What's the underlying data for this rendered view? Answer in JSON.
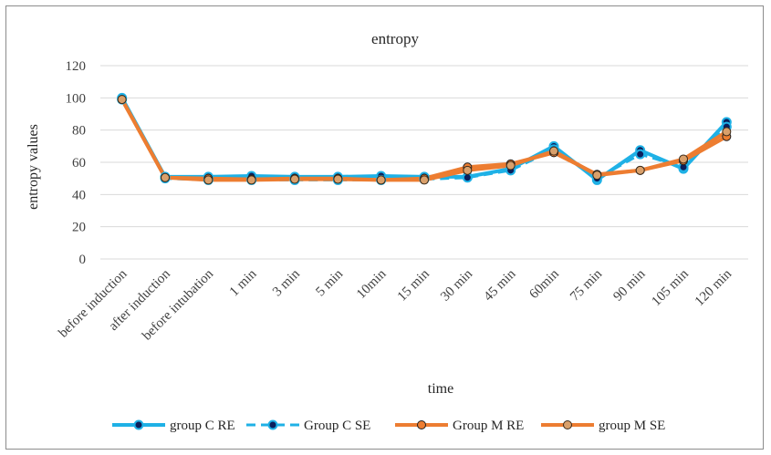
{
  "chart_data": {
    "type": "line",
    "title": "entropy",
    "xlabel": "time",
    "ylabel": "entropy values",
    "ylim": [
      0,
      120
    ],
    "yticks": [
      "0",
      "20",
      "40",
      "60",
      "80",
      "100",
      "120"
    ],
    "grid": true,
    "legend_position": "bottom",
    "categories": [
      "before induction",
      "after induction",
      "before intubation",
      "1 min",
      "3 min",
      "5 min",
      "10min",
      "15 min",
      "30 min",
      "45 min",
      "60min",
      "75 min",
      "90 min",
      "105 min",
      "120 min"
    ],
    "series": [
      {
        "name": "group C RE",
        "color": "#1fb1e6",
        "style": "solid",
        "values": [
          100,
          51,
          51,
          51.5,
          51,
          51,
          51.5,
          51,
          51,
          56,
          70,
          49,
          67.5,
          56,
          85
        ]
      },
      {
        "name": "Group C SE",
        "color": "#1fb1e6",
        "style": "dashed",
        "values": [
          99,
          50,
          49,
          49,
          49,
          49,
          49,
          49.5,
          50.5,
          55,
          68,
          50,
          65,
          57,
          82
        ]
      },
      {
        "name": "Group M RE",
        "color": "#ed7d31",
        "style": "solid",
        "values": [
          99,
          50.5,
          50,
          49.5,
          50,
          50,
          49,
          50,
          57,
          59,
          66,
          52.5,
          55,
          61,
          76
        ]
      },
      {
        "name": "group M SE",
        "color": "#ed7d31",
        "style": "solid",
        "values": [
          99,
          50.5,
          49,
          49,
          49.5,
          49.5,
          49,
          49,
          55,
          58,
          67,
          52,
          55,
          62,
          79
        ]
      }
    ]
  }
}
